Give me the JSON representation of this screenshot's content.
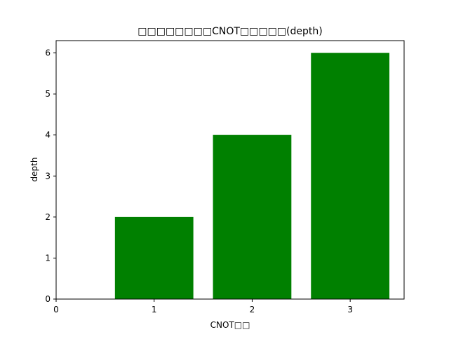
{
  "chart_data": {
    "type": "bar",
    "title": "□□□□□□□□CNOT□□□□□(depth)",
    "xlabel": "CNOT□□",
    "ylabel": "depth",
    "x": [
      1,
      2,
      3
    ],
    "values": [
      2,
      4,
      6
    ],
    "bar_color": "#008000",
    "xlim": [
      0,
      3.55
    ],
    "ylim": [
      0,
      6.3
    ],
    "xticks": [
      0,
      1,
      2,
      3
    ],
    "yticks": [
      0,
      1,
      2,
      3,
      4,
      5,
      6
    ],
    "grid": false,
    "legend": "none"
  }
}
